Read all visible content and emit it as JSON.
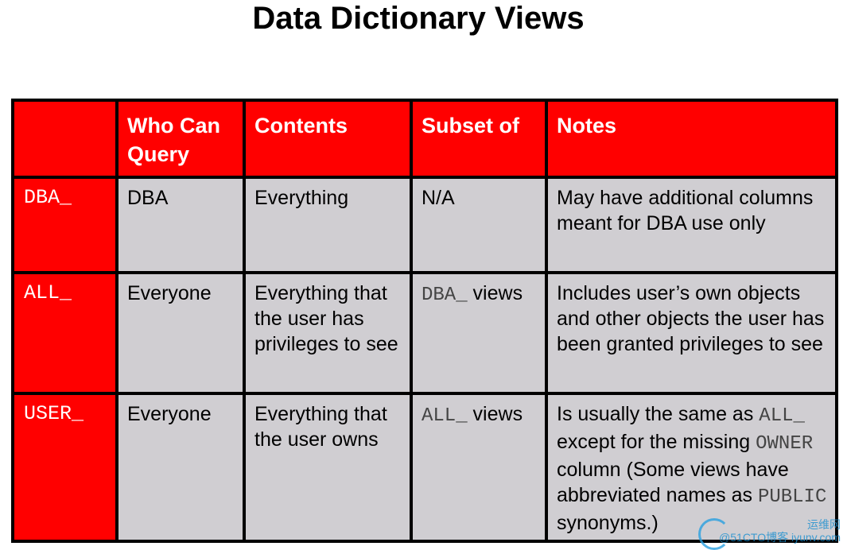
{
  "title": "Data Dictionary Views",
  "table": {
    "headers": [
      "",
      "Who Can Query",
      "Contents",
      "Subset of",
      "Notes"
    ],
    "rows": [
      {
        "prefix": "DBA_",
        "who": "DBA",
        "contents": "Everything",
        "subset": [
          {
            "text": "N/A",
            "mono": false
          }
        ],
        "notes": [
          {
            "text": "May have additional columns meant for DBA use only",
            "mono": false
          }
        ]
      },
      {
        "prefix": "ALL_",
        "who": "Everyone",
        "contents": "Everything that the user has privileges to see",
        "subset": [
          {
            "text": "DBA_",
            "mono": true
          },
          {
            "text": " views",
            "mono": false
          }
        ],
        "notes": [
          {
            "text": "Includes user’s own objects and other objects the user has been granted privileges to see",
            "mono": false
          }
        ]
      },
      {
        "prefix": "USER_",
        "who": "Everyone",
        "contents": "Everything that the user owns",
        "subset": [
          {
            "text": "ALL_",
            "mono": true
          },
          {
            "text": " views",
            "mono": false
          }
        ],
        "notes": [
          {
            "text": "Is usually the same as ",
            "mono": false
          },
          {
            "text": "ALL_",
            "mono": true
          },
          {
            "text": " except for the missing ",
            "mono": false
          },
          {
            "text": "OWNER",
            "mono": true
          },
          {
            "text": " column (Some views have abbreviated names as ",
            "mono": false
          },
          {
            "text": "PUBLIC",
            "mono": true
          },
          {
            "text": " synonyms.)",
            "mono": false
          }
        ]
      }
    ]
  },
  "watermark": {
    "line1": "运维网",
    "line2": "@51CTO博客 iyunv.com"
  },
  "colors": {
    "header_bg": "#ff0000",
    "cell_bg": "#d0ced2",
    "border": "#000000"
  }
}
